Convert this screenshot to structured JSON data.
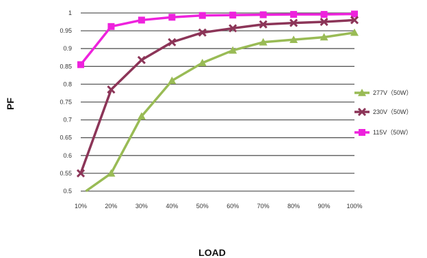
{
  "chart_data": {
    "type": "line",
    "xlabel": "LOAD",
    "ylabel": "PF",
    "categories": [
      "10%",
      "20%",
      "30%",
      "40%",
      "50%",
      "60%",
      "70%",
      "80%",
      "90%",
      "100%"
    ],
    "ylim": [
      0.5,
      1
    ],
    "yticks": [
      0.5,
      0.55,
      0.6,
      0.65,
      0.7,
      0.75,
      0.8,
      0.85,
      0.9,
      0.95,
      1
    ],
    "ytick_labels": [
      "0.5",
      "0.55",
      "0.6",
      "0.65",
      "0.7",
      "0.75",
      "0.8",
      "0.85",
      "0.9",
      "0.95",
      "1"
    ],
    "grid": true,
    "legend_position": "right",
    "series": [
      {
        "name": "277V（50W）",
        "color": "#99bb55",
        "marker": "triangle",
        "start_at": 0.17,
        "start_value": 0.5,
        "values": [
          null,
          0.55,
          0.71,
          0.81,
          0.86,
          0.895,
          0.918,
          0.925,
          0.932,
          0.945
        ]
      },
      {
        "name": "230V（50W）",
        "color": "#8c3558",
        "marker": "x",
        "values": [
          0.55,
          0.785,
          0.868,
          0.918,
          0.945,
          0.957,
          0.968,
          0.972,
          0.975,
          0.98
        ]
      },
      {
        "name": "115V（50W）",
        "color": "#ee22dd",
        "marker": "square",
        "values": [
          0.855,
          0.962,
          0.98,
          0.988,
          0.993,
          0.994,
          0.995,
          0.996,
          0.996,
          0.997
        ]
      }
    ]
  }
}
